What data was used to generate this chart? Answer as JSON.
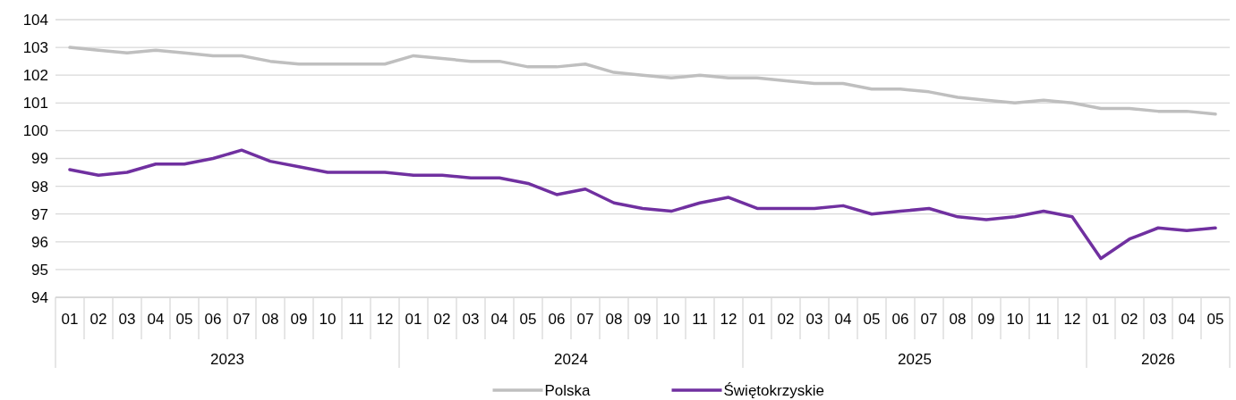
{
  "chart_data": {
    "type": "line",
    "categories": [
      "01",
      "02",
      "03",
      "04",
      "05",
      "06",
      "07",
      "08",
      "09",
      "10",
      "11",
      "12",
      "01",
      "02",
      "03",
      "04",
      "05",
      "06",
      "07",
      "08",
      "09",
      "10",
      "11",
      "12",
      "01",
      "02",
      "03",
      "04",
      "05",
      "06",
      "07",
      "08",
      "09",
      "10",
      "11",
      "12",
      "01",
      "02",
      "03",
      "04",
      "05"
    ],
    "series": [
      {
        "name": "Polska",
        "color": "#bfbfbf",
        "values": [
          103.0,
          102.9,
          102.8,
          102.9,
          102.8,
          102.7,
          102.7,
          102.5,
          102.4,
          102.4,
          102.4,
          102.4,
          102.7,
          102.6,
          102.5,
          102.5,
          102.3,
          102.3,
          102.4,
          102.1,
          102.0,
          101.9,
          102.0,
          101.9,
          101.9,
          101.8,
          101.7,
          101.7,
          101.5,
          101.5,
          101.4,
          101.2,
          101.1,
          101.0,
          101.1,
          101.0,
          100.8,
          100.8,
          100.7,
          100.7,
          100.6
        ]
      },
      {
        "name": "Świętokrzyskie",
        "color": "#7030a0",
        "values": [
          98.6,
          98.4,
          98.5,
          98.8,
          98.8,
          99.0,
          99.3,
          98.9,
          98.7,
          98.5,
          98.5,
          98.5,
          98.4,
          98.4,
          98.3,
          98.3,
          98.1,
          97.7,
          97.9,
          97.4,
          97.2,
          97.1,
          97.4,
          97.6,
          97.2,
          97.2,
          97.2,
          97.3,
          97.0,
          97.1,
          97.2,
          96.9,
          96.8,
          96.9,
          97.1,
          96.9,
          95.4,
          96.1,
          96.5,
          96.4,
          96.5
        ]
      }
    ],
    "annotations": [
      "2023",
      "2024",
      "2025",
      "2026"
    ],
    "ylim": [
      94,
      104
    ],
    "yticks": [
      94,
      95,
      96,
      97,
      98,
      99,
      100,
      101,
      102,
      103,
      104
    ],
    "grid": "y",
    "legend": "bottom",
    "marker": "none",
    "line_style": "solid"
  }
}
